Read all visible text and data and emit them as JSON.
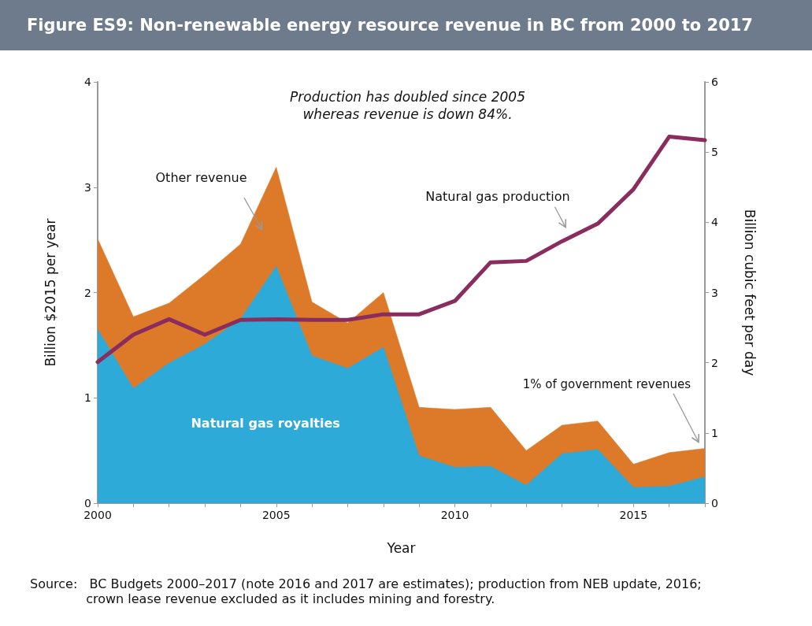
{
  "chart_data": {
    "type": "area",
    "title": "Figure ES9: Non-renewable energy resource revenue in BC from 2000 to 2017",
    "xlabel": "Year",
    "ylabel": "Billion $2015 per year",
    "y2label": "Billion cubic feet per day",
    "x": [
      2000,
      2001,
      2002,
      2003,
      2004,
      2005,
      2006,
      2007,
      2008,
      2009,
      2010,
      2011,
      2012,
      2013,
      2014,
      2015,
      2016,
      2017
    ],
    "stacked": true,
    "series": [
      {
        "name": "Natural gas royalties",
        "color": "#2eaad8",
        "values": [
          1.65,
          1.09,
          1.33,
          1.51,
          1.75,
          2.25,
          1.4,
          1.28,
          1.48,
          0.45,
          0.34,
          0.35,
          0.17,
          0.47,
          0.51,
          0.15,
          0.16,
          0.25
        ]
      },
      {
        "name": "Other revenue",
        "color": "#dd7a2a",
        "values": [
          0.86,
          0.68,
          0.57,
          0.66,
          0.71,
          0.94,
          0.51,
          0.43,
          0.52,
          0.46,
          0.55,
          0.56,
          0.33,
          0.27,
          0.27,
          0.22,
          0.32,
          0.27
        ]
      },
      {
        "name": "Natural gas production",
        "type": "line",
        "axis": "y2",
        "color": "#8b2c5e",
        "values": [
          2.01,
          2.4,
          2.62,
          2.4,
          2.61,
          2.62,
          2.61,
          2.61,
          2.69,
          2.69,
          2.88,
          3.43,
          3.45,
          3.73,
          3.98,
          4.47,
          5.22,
          5.17
        ]
      }
    ],
    "xlim": [
      2000,
      2017
    ],
    "xticks": [
      2000,
      {
        "value": 2001,
        "label": null
      },
      {
        "value": 2002,
        "label": null
      },
      {
        "value": 2003,
        "label": null
      },
      {
        "value": 2004,
        "label": null
      },
      2005,
      {
        "value": 2006,
        "label": null
      },
      {
        "value": 2007,
        "label": null
      },
      {
        "value": 2008,
        "label": null
      },
      {
        "value": 2009,
        "label": null
      },
      2010,
      {
        "value": 2011,
        "label": null
      },
      {
        "value": 2012,
        "label": null
      },
      {
        "value": 2013,
        "label": null
      },
      {
        "value": 2014,
        "label": null
      },
      2015,
      {
        "value": 2016,
        "label": null
      },
      {
        "value": 2017,
        "label": null
      }
    ],
    "ylim": [
      0,
      4
    ],
    "yticks": [
      0,
      1,
      2,
      3,
      4
    ],
    "y2lim": [
      0,
      6
    ],
    "y2ticks": [
      0,
      1,
      2,
      3,
      4,
      5,
      6
    ],
    "marker": "none",
    "line_style": "solid",
    "grid": false,
    "legend": false,
    "annotations": [
      "Production has doubled since 2005\nwhereas revenue is down 84%.",
      "1% of government revenues",
      "Source:   BC Budgets 2000–2017 (note 2016 and 2017 are estimates); production from NEB update, 2016;\n              crown lease revenue excluded as it includes mining and forestry."
    ]
  }
}
